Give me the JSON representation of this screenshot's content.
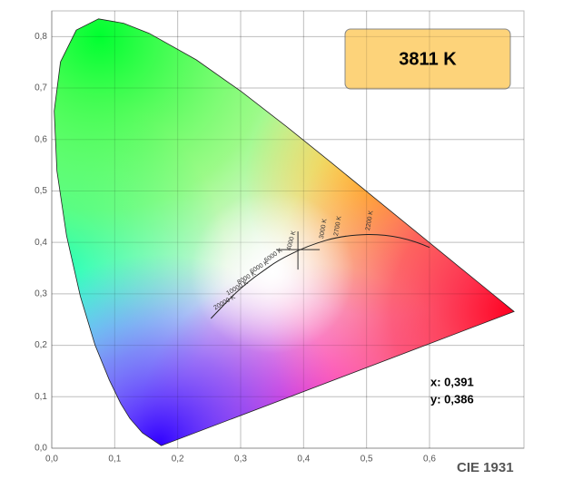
{
  "chart_data": {
    "type": "scatter",
    "title": "3811 K",
    "label": "CIE 1931",
    "x": [
      0.391
    ],
    "y": [
      0.386
    ],
    "annotations": [
      "x: 0,391",
      "y: 0,386"
    ],
    "cct_labels": [
      "2200 K",
      "2700 K",
      "3000 K",
      "4000 K",
      "5000 K",
      "6000 K",
      "8000 K",
      "10000 K",
      "20000 K"
    ],
    "xlim": [
      0,
      0.75
    ],
    "ylim": [
      0,
      0.85
    ],
    "xticks": [
      {
        "value": 0,
        "label": "0,0"
      },
      {
        "value": 0.1,
        "label": "0,1"
      },
      {
        "value": 0.2,
        "label": "0,2"
      },
      {
        "value": 0.3,
        "label": "0,3"
      },
      {
        "value": 0.4,
        "label": "0,4"
      },
      {
        "value": 0.5,
        "label": "0,5"
      },
      {
        "value": 0.6,
        "label": "0,6"
      }
    ],
    "yticks": [
      {
        "value": 0,
        "label": "0,0"
      },
      {
        "value": 0.1,
        "label": "0,1"
      },
      {
        "value": 0.2,
        "label": "0,2"
      },
      {
        "value": 0.3,
        "label": "0,3"
      },
      {
        "value": 0.4,
        "label": "0,4"
      },
      {
        "value": 0.5,
        "label": "0,5"
      },
      {
        "value": 0.6,
        "label": "0,6"
      },
      {
        "value": 0.7,
        "label": "0,7"
      },
      {
        "value": 0.8,
        "label": "0,8"
      }
    ],
    "grid": true
  }
}
